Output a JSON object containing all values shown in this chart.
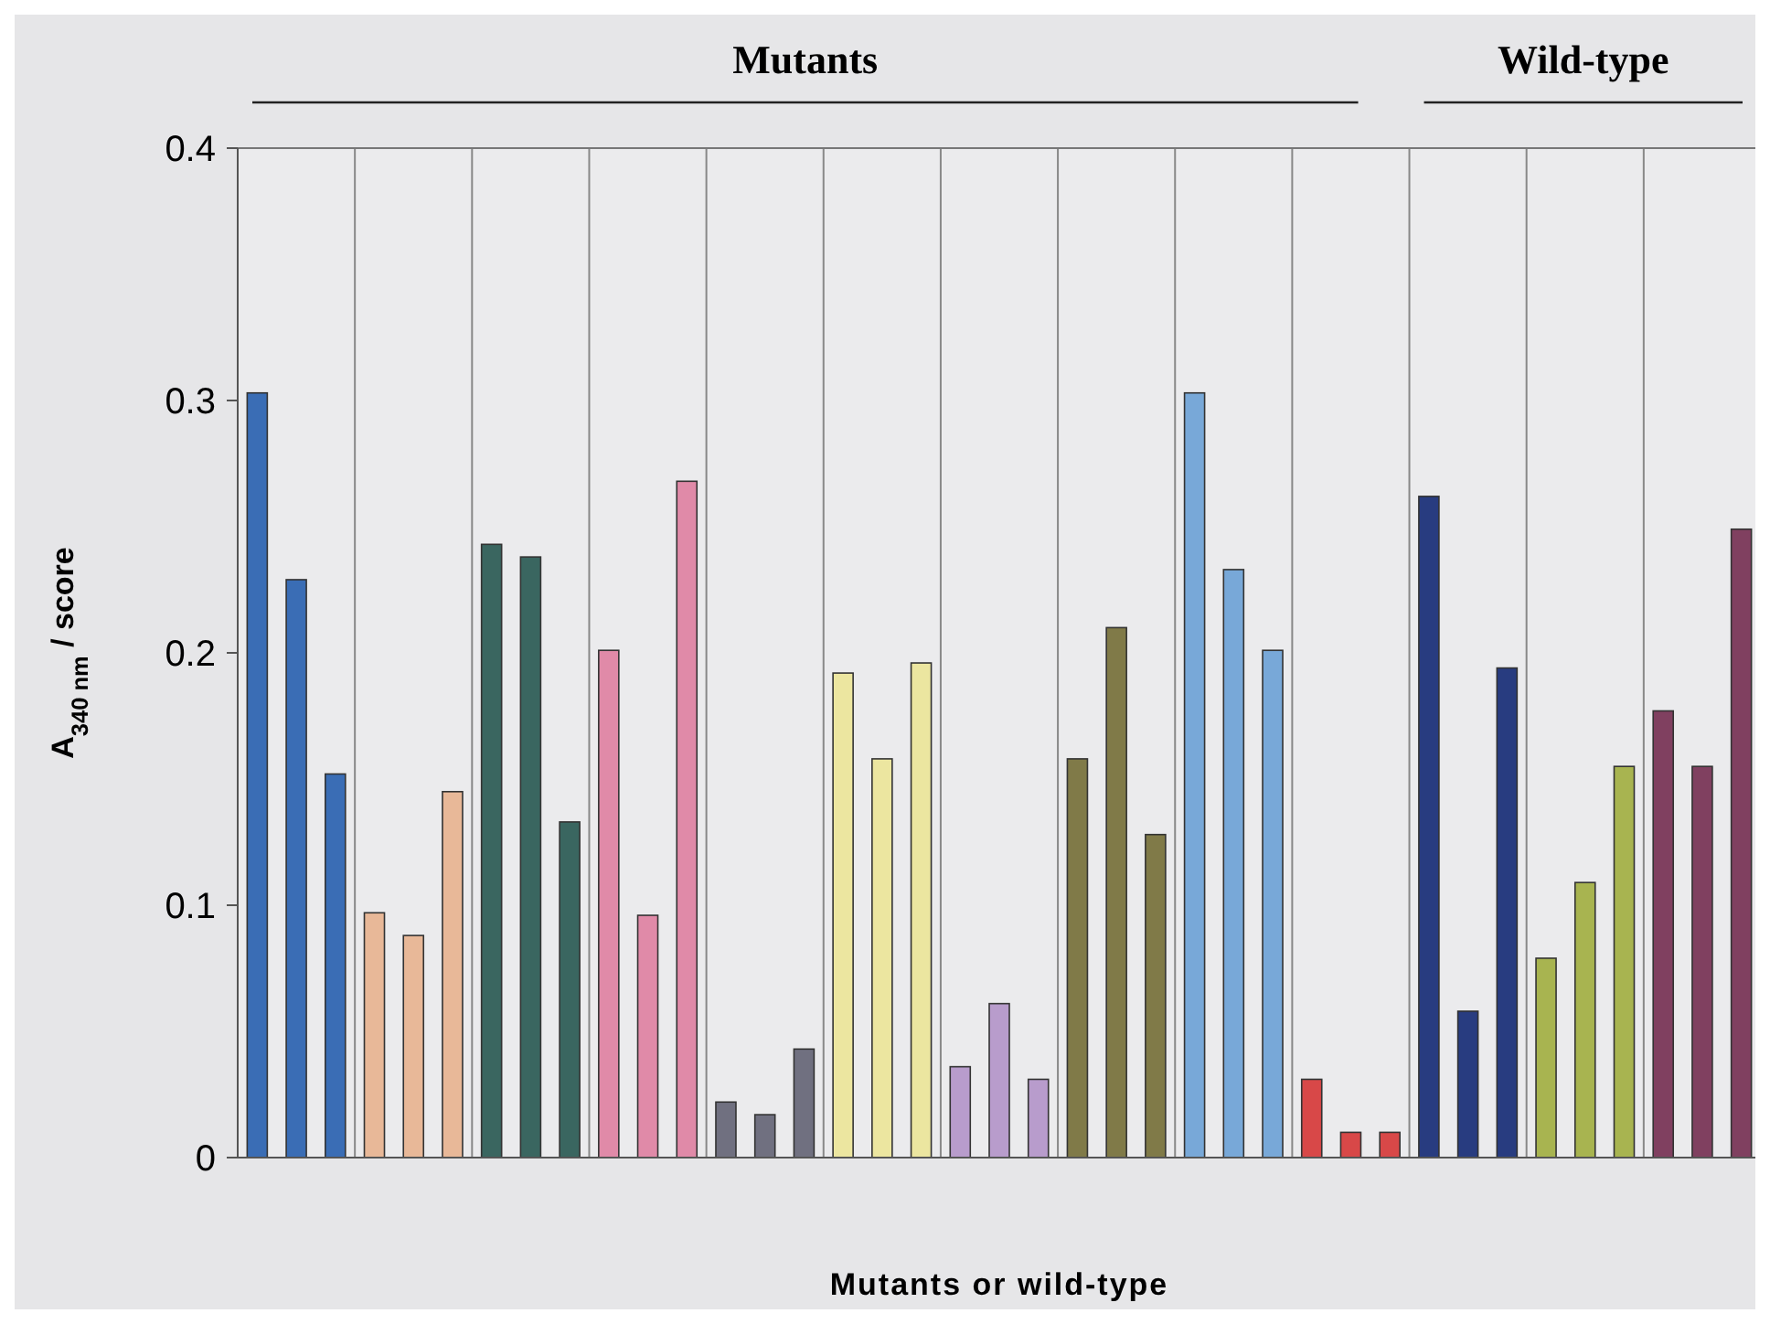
{
  "chart_data": {
    "type": "bar",
    "xlabel": "Mutants or wild-type",
    "ylabel": "A$_{340 nm}$ / score",
    "annotations": [
      "Mutants",
      "Wild-type"
    ],
    "categories": [
      null,
      null,
      null,
      null,
      null,
      null,
      null,
      null,
      null,
      null,
      null,
      null,
      null
    ],
    "series": [
      {
        "values": [
          0.303,
          0.097,
          0.243,
          0.201,
          0.022,
          0.192,
          0.036,
          0.158,
          0.303,
          0.031,
          0.262,
          0.079,
          0.177
        ],
        "colors": [
          "#3a6db5",
          "#e8b898",
          "#3a6660",
          "#e08aa8",
          "#707080",
          "#ece6a0",
          "#b89ccc",
          "#807a48",
          "#78a8d8",
          "#d84848",
          "#283c80",
          "#a8b450",
          "#804060"
        ]
      },
      {
        "values": [
          0.229,
          0.088,
          0.238,
          0.096,
          0.017,
          0.158,
          0.061,
          0.21,
          0.233,
          0.01,
          0.058,
          0.109,
          0.155
        ],
        "colors": [
          "#3a6db5",
          "#e8b898",
          "#3a6660",
          "#e08aa8",
          "#707080",
          "#ece6a0",
          "#b89ccc",
          "#807a48",
          "#78a8d8",
          "#d84848",
          "#283c80",
          "#a8b450",
          "#804060"
        ]
      },
      {
        "values": [
          0.152,
          0.145,
          0.133,
          0.268,
          0.043,
          0.196,
          0.031,
          0.128,
          0.201,
          0.01,
          0.194,
          0.155,
          0.249
        ],
        "colors": [
          "#3a6db5",
          "#e8b898",
          "#3a6660",
          "#e08aa8",
          "#707080",
          "#ece6a0",
          "#b89ccc",
          "#807a48",
          "#78a8d8",
          "#d84848",
          "#283c80",
          "#a8b450",
          "#804060"
        ]
      }
    ],
    "ylim": [
      0,
      0.4
    ],
    "yticks": [
      0,
      0.1,
      0.2,
      0.3,
      0.4
    ],
    "grid": "x"
  }
}
